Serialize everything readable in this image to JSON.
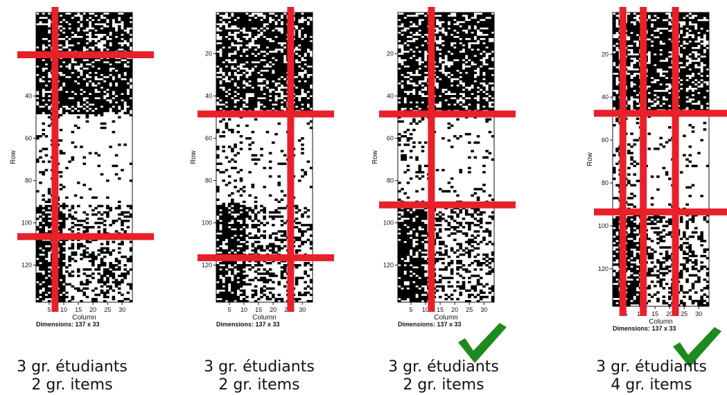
{
  "chart_data": [
    {
      "type": "heatmap",
      "xlabel": "Column",
      "ylabel": "Row",
      "dimensions": "Dimensions: 137 x 33",
      "rows": 137,
      "cols": 33,
      "x_ticks": [
        "5",
        "10",
        "15",
        "20",
        "25",
        "30"
      ],
      "y_ticks": [
        "20",
        "40",
        "60",
        "80",
        "100",
        "120"
      ],
      "row_cuts": [
        20,
        106
      ],
      "col_cuts": [
        7
      ],
      "dense_row_bands": [
        [
          1,
          48
        ],
        [
          92,
          137
        ]
      ],
      "caption_students": "3 gr. étudiants",
      "caption_items": "2 gr. items",
      "check": false
    },
    {
      "type": "heatmap",
      "xlabel": "Column",
      "ylabel": "Row",
      "dimensions": "Dimensions: 137 x 33",
      "rows": 137,
      "cols": 33,
      "x_ticks": [
        "5",
        "10",
        "15",
        "20",
        "25",
        "30"
      ],
      "y_ticks": [
        "20",
        "40",
        "60",
        "80",
        "100",
        "120"
      ],
      "row_cuts": [
        48,
        116
      ],
      "col_cuts": [
        26
      ],
      "dense_row_bands": [
        [
          1,
          48
        ],
        [
          92,
          137
        ]
      ],
      "caption_students": "3 gr. étudiants",
      "caption_items": "2 gr. items",
      "check": false
    },
    {
      "type": "heatmap",
      "xlabel": "Column",
      "ylabel": "Row",
      "dimensions": "Dimensions: 137 x 33",
      "rows": 137,
      "cols": 33,
      "x_ticks": [
        "5",
        "10",
        "15",
        "20",
        "25",
        "30"
      ],
      "y_ticks": [
        "20",
        "40",
        "60",
        "80",
        "100",
        "120"
      ],
      "row_cuts": [
        48,
        91
      ],
      "col_cuts": [
        12
      ],
      "dense_row_bands": [
        [
          1,
          48
        ],
        [
          92,
          137
        ]
      ],
      "caption_students": "3 gr. étudiants",
      "caption_items": "2 gr. items",
      "check": true
    },
    {
      "type": "heatmap",
      "xlabel": "Column",
      "ylabel": "Row",
      "dimensions": "Dimensions: 137 x 33",
      "rows": 137,
      "cols": 33,
      "x_ticks": [
        "5",
        "10",
        "15",
        "20",
        "25",
        "30"
      ],
      "y_ticks": [
        "20",
        "40",
        "60",
        "80",
        "100",
        "120"
      ],
      "row_cuts": [
        47,
        93
      ],
      "col_cuts": [
        4,
        11,
        22
      ],
      "dense_row_bands": [
        [
          1,
          48
        ],
        [
          93,
          137
        ]
      ],
      "caption_students": "3 gr. étudiants",
      "caption_items": "4 gr. items",
      "check": true
    }
  ],
  "colors": {
    "cell": "#000000",
    "cut_line": "#e8202a",
    "check": "#1e8a1e"
  },
  "first_row_tick_value": 20,
  "row_tick_step": 20,
  "first_col_tick_value": 5,
  "col_tick_step": 5
}
